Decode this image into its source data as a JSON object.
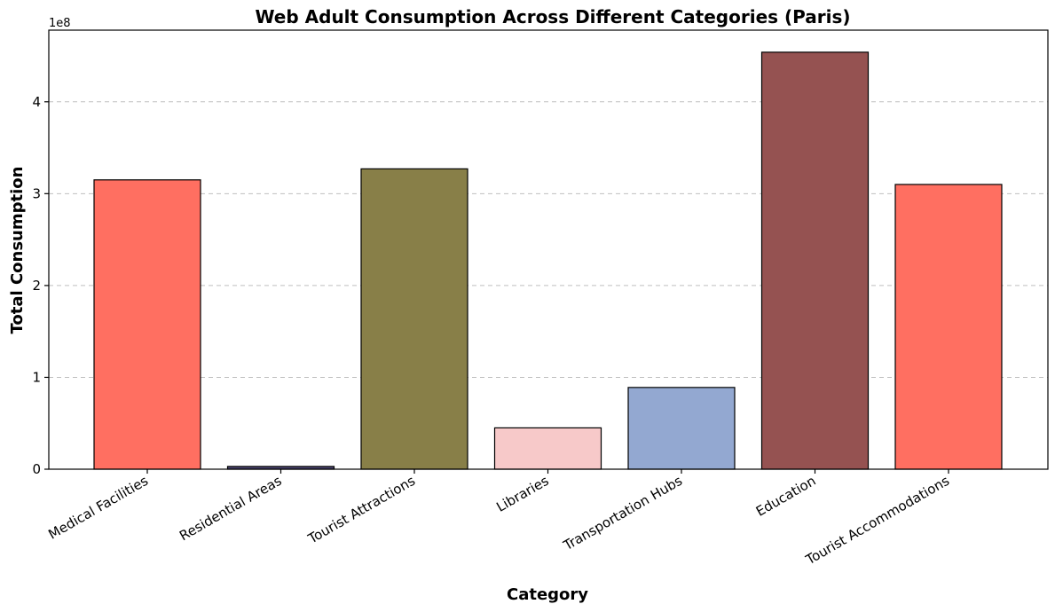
{
  "chart_data": {
    "type": "bar",
    "title": "Web Adult Consumption Across Different Categories (Paris)",
    "xlabel": "Category",
    "ylabel": "Total Consumption",
    "y_offset_label": "1e8",
    "y_scale_factor": 100000000,
    "ylim": [
      0,
      478000000
    ],
    "yticks": [
      0,
      100000000,
      200000000,
      300000000,
      400000000
    ],
    "ytick_labels": [
      "0",
      "1",
      "2",
      "3",
      "4"
    ],
    "grid": "y-dashed",
    "categories": [
      "Medical Facilities",
      "Residential Areas",
      "Tourist Attractions",
      "Libraries",
      "Transportation Hubs",
      "Education",
      "Tourist Accommodations"
    ],
    "values": [
      315000000,
      3000000,
      327000000,
      45000000,
      89000000,
      454000000,
      310000000
    ],
    "colors": [
      "#ff6f61",
      "#4a4470",
      "#887f48",
      "#f7c9c9",
      "#93a8d1",
      "#955251",
      "#ff6f61"
    ]
  }
}
